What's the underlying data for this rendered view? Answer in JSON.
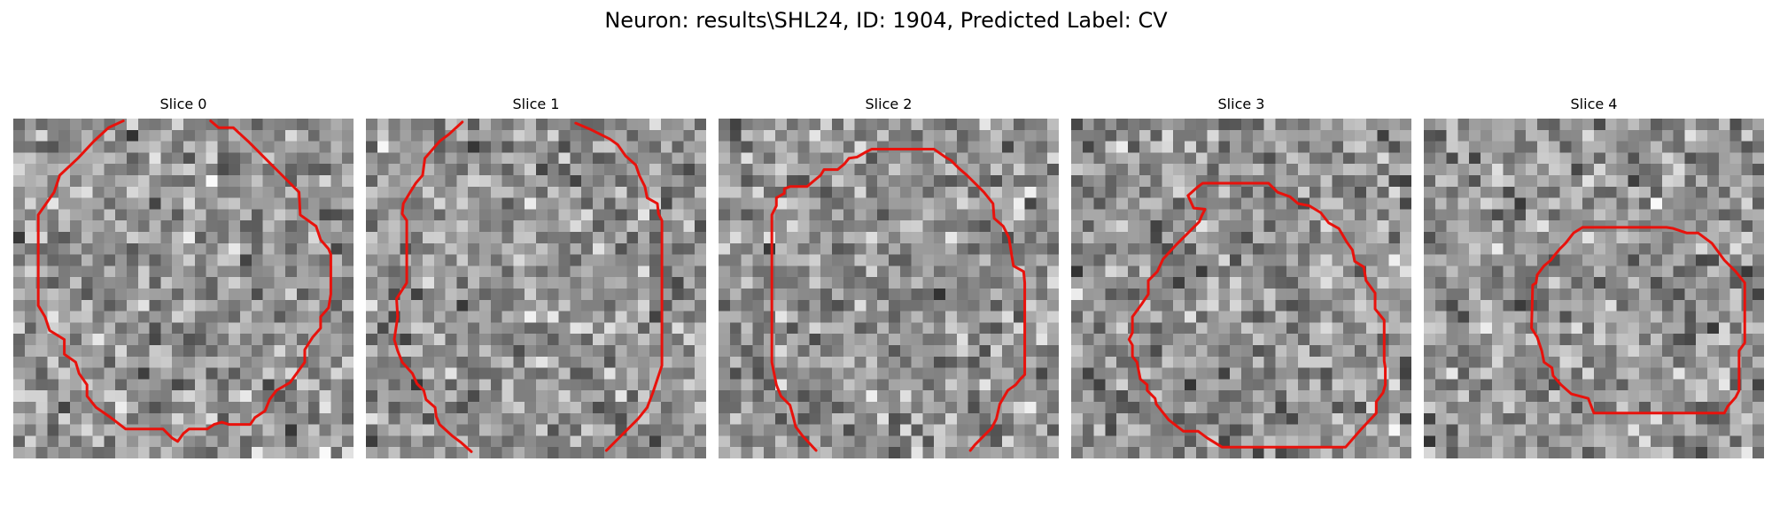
{
  "figure": {
    "title": "Neuron: results\\SHL24, ID: 1904, Predicted Label: CV",
    "contour_color": "#e8120c",
    "colormap": "grayscale",
    "grid_cells": 30
  },
  "slices": [
    {
      "label": "Slice 0",
      "seed": 11,
      "contours": [
        [
          [
            9.7,
            0.2
          ],
          [
            8.4,
            0.8
          ],
          [
            7.1,
            2
          ],
          [
            5.7,
            3.5
          ],
          [
            4.1,
            5
          ],
          [
            3.6,
            6.5
          ],
          [
            2.2,
            8.5
          ],
          [
            2.2,
            16.5
          ],
          [
            2.8,
            17.5
          ],
          [
            3.2,
            18.7
          ],
          [
            4.5,
            19.5
          ],
          [
            4.5,
            20.8
          ],
          [
            5.5,
            21.5
          ],
          [
            5.8,
            22.5
          ],
          [
            6.5,
            23.5
          ],
          [
            6.5,
            24.5
          ],
          [
            7.3,
            25.5
          ],
          [
            8.6,
            26.4
          ],
          [
            9.9,
            27.4
          ],
          [
            13.2,
            27.4
          ],
          [
            14,
            28.2
          ],
          [
            14.5,
            28.5
          ],
          [
            15,
            27.8
          ],
          [
            15.5,
            27.4
          ],
          [
            17.1,
            27.4
          ],
          [
            17.7,
            27
          ],
          [
            18.4,
            26.8
          ],
          [
            19,
            27
          ],
          [
            20.9,
            27
          ],
          [
            21.3,
            26.4
          ],
          [
            22.2,
            25.8
          ],
          [
            22.6,
            24.8
          ],
          [
            23.2,
            24
          ],
          [
            24.4,
            23.3
          ],
          [
            25.2,
            22.2
          ],
          [
            25.7,
            21.5
          ],
          [
            25.7,
            20.4
          ],
          [
            26.4,
            19.3
          ],
          [
            27.1,
            18.5
          ],
          [
            27.1,
            17.5
          ],
          [
            27.8,
            16.7
          ],
          [
            28,
            15.5
          ],
          [
            28,
            12
          ],
          [
            27.8,
            11.5
          ],
          [
            27.1,
            10.7
          ],
          [
            26.7,
            9.5
          ],
          [
            25.3,
            8.5
          ],
          [
            25.2,
            6.5
          ],
          [
            23.7,
            5
          ],
          [
            22.2,
            3.5
          ],
          [
            20.7,
            2
          ],
          [
            19.4,
            0.8
          ],
          [
            18.1,
            0.8
          ],
          [
            17.4,
            0.2
          ]
        ]
      ]
    },
    {
      "label": "Slice 1",
      "seed": 23,
      "contours": [
        [
          [
            8.5,
            0.3
          ],
          [
            7.3,
            1.4
          ],
          [
            6.5,
            2
          ],
          [
            5.2,
            3.5
          ],
          [
            5,
            5
          ],
          [
            4.4,
            5.7
          ],
          [
            3.9,
            6.5
          ],
          [
            3.3,
            7.5
          ],
          [
            3.2,
            8.4
          ],
          [
            3.6,
            9
          ],
          [
            3.6,
            14.5
          ],
          [
            2.7,
            15.9
          ],
          [
            2.8,
            17.5
          ],
          [
            2.5,
            19.5
          ],
          [
            2.8,
            20.5
          ],
          [
            3.2,
            21.5
          ],
          [
            4.1,
            22.5
          ],
          [
            4.5,
            23.4
          ],
          [
            5.1,
            24
          ],
          [
            5.3,
            24.8
          ],
          [
            6.1,
            25.5
          ],
          [
            6.2,
            26.3
          ],
          [
            6.5,
            27
          ],
          [
            7.6,
            28
          ],
          [
            8.4,
            28.6
          ],
          [
            9.3,
            29.4
          ]
        ],
        [
          [
            18.5,
            0.4
          ],
          [
            19.9,
            1
          ],
          [
            21.5,
            1.8
          ],
          [
            22.2,
            2.3
          ],
          [
            22.9,
            3.3
          ],
          [
            23.8,
            4.1
          ],
          [
            24.1,
            5
          ],
          [
            24.6,
            6
          ],
          [
            24.8,
            7
          ],
          [
            25.7,
            7.5
          ],
          [
            25.8,
            8.4
          ],
          [
            26.1,
            9
          ],
          [
            26.1,
            21.8
          ],
          [
            25.7,
            23
          ],
          [
            25.3,
            24.2
          ],
          [
            24.8,
            25.5
          ],
          [
            24,
            26.5
          ],
          [
            22.7,
            27.8
          ],
          [
            21.2,
            29.3
          ]
        ]
      ]
    },
    {
      "label": "Slice 2",
      "seed": 37,
      "contours": [
        [
          [
            8.6,
            29.3
          ],
          [
            7.4,
            28
          ],
          [
            6.8,
            27.2
          ],
          [
            6.6,
            26.4
          ],
          [
            6.3,
            25.3
          ],
          [
            5.5,
            24.5
          ],
          [
            5.1,
            23.5
          ],
          [
            4.9,
            22.5
          ],
          [
            4.7,
            21.5
          ],
          [
            4.7,
            8.5
          ],
          [
            5.1,
            7.7
          ],
          [
            5.1,
            7
          ],
          [
            5.8,
            6.6
          ],
          [
            5.8,
            6.2
          ],
          [
            6.3,
            6
          ],
          [
            7.8,
            6
          ],
          [
            8.4,
            5.5
          ],
          [
            9,
            5
          ],
          [
            9.3,
            4.5
          ],
          [
            10.5,
            4.5
          ],
          [
            11.1,
            4
          ],
          [
            11.5,
            3.5
          ],
          [
            12.2,
            3.4
          ],
          [
            12.9,
            3
          ],
          [
            13.5,
            2.7
          ],
          [
            19,
            2.7
          ],
          [
            20,
            3.4
          ],
          [
            20.5,
            3.7
          ],
          [
            21.2,
            4.4
          ],
          [
            21.9,
            5
          ],
          [
            22.7,
            5.8
          ],
          [
            23.4,
            6.5
          ],
          [
            24.2,
            7.5
          ],
          [
            24.3,
            8.8
          ],
          [
            25.1,
            9.5
          ],
          [
            25.6,
            10.5
          ],
          [
            26,
            13
          ],
          [
            26.9,
            13.5
          ],
          [
            27,
            14.5
          ],
          [
            27,
            22.6
          ],
          [
            26.6,
            23
          ],
          [
            26.2,
            23.5
          ],
          [
            25.5,
            24
          ],
          [
            24.8,
            25.2
          ],
          [
            24.5,
            26.5
          ],
          [
            24.1,
            27.3
          ],
          [
            23.6,
            27.8
          ],
          [
            23.2,
            28.2
          ],
          [
            22.6,
            28.8
          ],
          [
            22.2,
            29.3
          ]
        ]
      ]
    },
    {
      "label": "Slice 3",
      "seed": 53,
      "contours": [
        [
          [
            10.3,
            6.8
          ],
          [
            11.2,
            6
          ],
          [
            11.6,
            5.7
          ],
          [
            17.4,
            5.7
          ],
          [
            18.2,
            6.5
          ],
          [
            19.3,
            6.9
          ],
          [
            20,
            7.5
          ],
          [
            21,
            7.7
          ],
          [
            22,
            8.3
          ],
          [
            22.7,
            9.2
          ],
          [
            23.6,
            9.7
          ],
          [
            24.3,
            10.9
          ],
          [
            24.8,
            11.6
          ],
          [
            25,
            12.6
          ],
          [
            25.8,
            13.1
          ],
          [
            26,
            14.3
          ],
          [
            26.8,
            15.4
          ],
          [
            26.8,
            16.8
          ],
          [
            27.6,
            17.8
          ],
          [
            27.6,
            21.4
          ],
          [
            27.7,
            22
          ],
          [
            27.7,
            23.5
          ],
          [
            27.5,
            24.2
          ],
          [
            26.9,
            25
          ],
          [
            26.9,
            26
          ],
          [
            25.5,
            27.5
          ],
          [
            24.2,
            29
          ],
          [
            13.3,
            29
          ],
          [
            12,
            28.2
          ],
          [
            11.2,
            27.6
          ],
          [
            9.9,
            27.6
          ],
          [
            8.6,
            26.6
          ],
          [
            7.5,
            25.2
          ],
          [
            7.4,
            24.7
          ],
          [
            6.7,
            24
          ],
          [
            6.7,
            23.5
          ],
          [
            6.1,
            23
          ],
          [
            5.8,
            21.5
          ],
          [
            5.4,
            21
          ],
          [
            5.4,
            20
          ],
          [
            5.1,
            19.5
          ],
          [
            5.4,
            18.9
          ],
          [
            5.4,
            17.5
          ],
          [
            6.2,
            16.4
          ],
          [
            6.8,
            15.5
          ],
          [
            6.8,
            14.3
          ],
          [
            7.6,
            13.5
          ],
          [
            8.1,
            12.4
          ],
          [
            9.2,
            11.2
          ],
          [
            10.2,
            10.2
          ],
          [
            11.3,
            9.1
          ],
          [
            11.5,
            8.6
          ],
          [
            11.8,
            8
          ],
          [
            10.8,
            7.9
          ],
          [
            10.3,
            6.8
          ]
        ]
      ]
    },
    {
      "label": "Slice 4",
      "seed": 71,
      "contours": [
        [
          [
            14,
            9.6
          ],
          [
            13.2,
            10.1
          ],
          [
            12.5,
            11
          ],
          [
            12,
            11.5
          ],
          [
            11.5,
            12.1
          ],
          [
            11.2,
            12.5
          ],
          [
            10.6,
            13
          ],
          [
            10,
            13.8
          ],
          [
            9.9,
            14.5
          ],
          [
            9.6,
            14.7
          ],
          [
            9.5,
            18.5
          ],
          [
            10,
            19.3
          ],
          [
            10.4,
            20.5
          ],
          [
            10.6,
            21.5
          ],
          [
            11.3,
            22
          ],
          [
            11.4,
            22.7
          ],
          [
            12.1,
            23.5
          ],
          [
            13,
            24.3
          ],
          [
            14.5,
            24.7
          ],
          [
            15,
            26
          ],
          [
            26.5,
            26
          ],
          [
            26.8,
            25.4
          ],
          [
            27.5,
            24.6
          ],
          [
            27.8,
            24
          ],
          [
            27.8,
            20.5
          ],
          [
            28.3,
            19.8
          ],
          [
            28.3,
            14.5
          ],
          [
            27.5,
            13.5
          ],
          [
            26.5,
            12.5
          ],
          [
            25.4,
            11
          ],
          [
            24.2,
            10.1
          ],
          [
            23.2,
            10.1
          ],
          [
            22,
            9.7
          ],
          [
            21.4,
            9.6
          ],
          [
            14,
            9.6
          ]
        ]
      ]
    }
  ]
}
